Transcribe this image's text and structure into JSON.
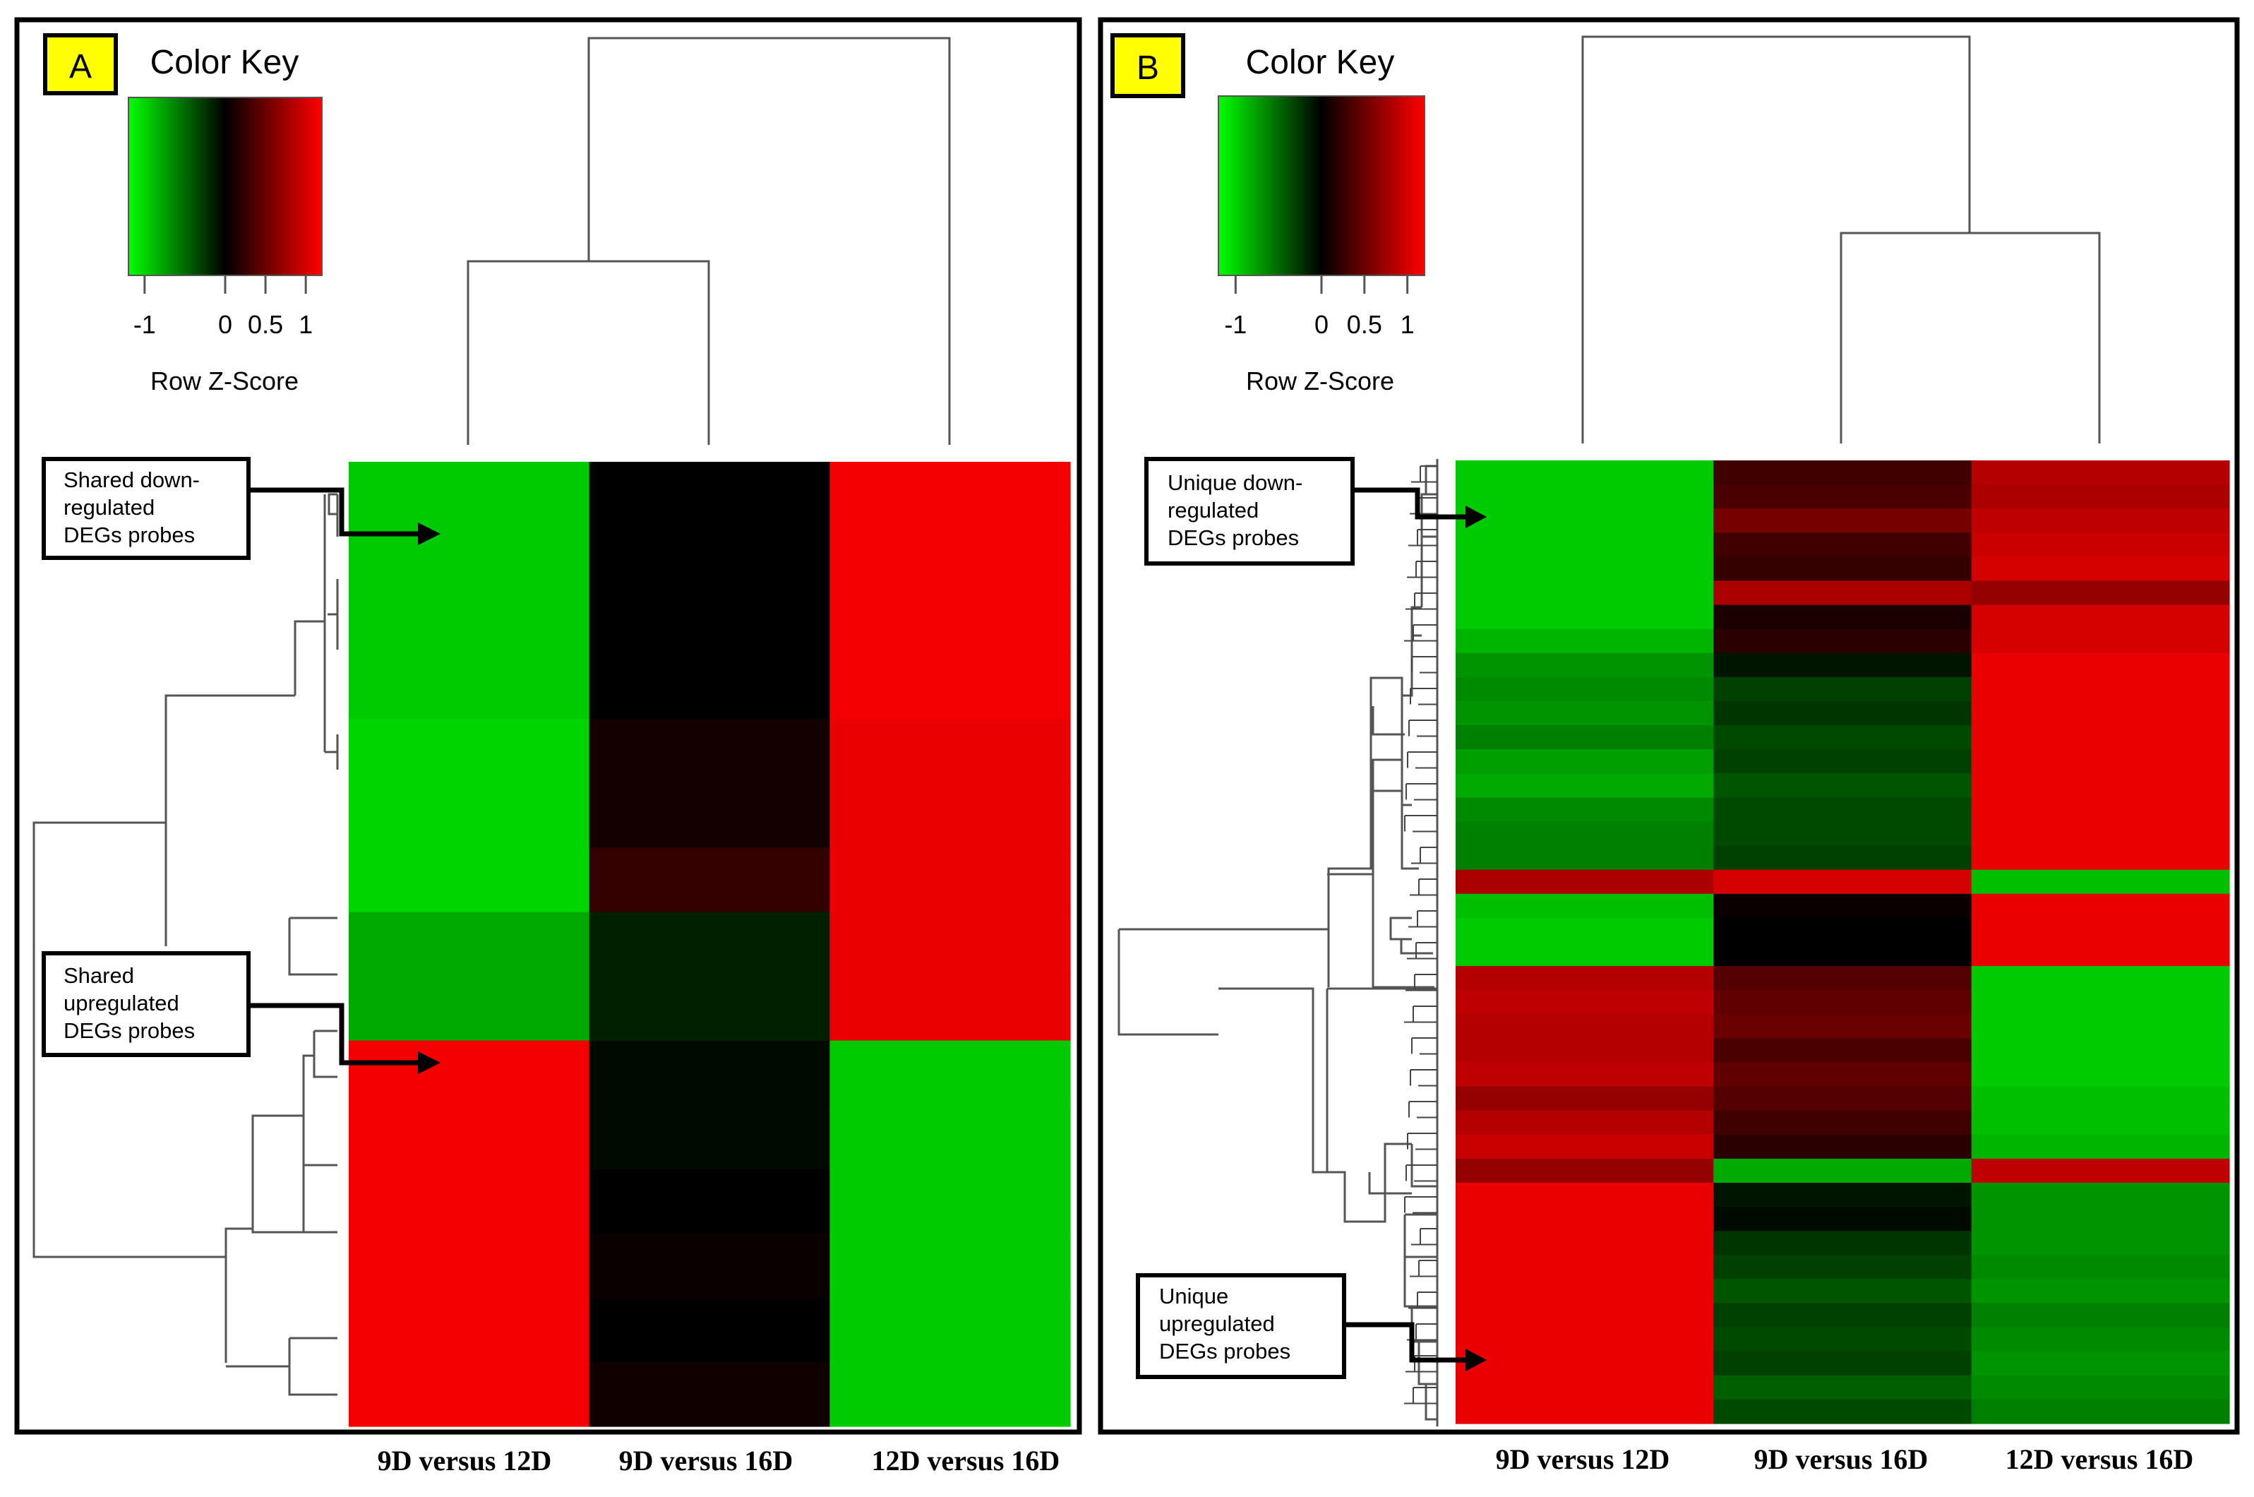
{
  "panels": [
    {
      "letter": "A",
      "color_key": {
        "title": "Color Key",
        "axis_label": "Row Z-Score",
        "ticks": [
          "-1",
          "0",
          "0.5",
          "1"
        ],
        "tick_values": [
          -1,
          0,
          0.5,
          1
        ],
        "range": [
          -1.2,
          1.2
        ]
      },
      "annotations": [
        {
          "text": [
            "Shared down-",
            "regulated",
            "DEGs probes"
          ],
          "target_row": 1
        },
        {
          "text": [
            "Shared",
            "upregulated",
            "DEGs probes"
          ],
          "target_row": 11
        }
      ]
    },
    {
      "letter": "B",
      "color_key": {
        "title": "Color Key",
        "axis_label": "Row Z-Score",
        "ticks": [
          "-1",
          "0",
          "0.5",
          "1"
        ],
        "tick_values": [
          -1,
          0,
          0.5,
          1
        ],
        "range": [
          -1.2,
          1.2
        ]
      },
      "annotations": [
        {
          "text": [
            "Unique down-",
            "regulated",
            "DEGs probes"
          ],
          "target_row": 1
        },
        {
          "text": [
            "Unique",
            "upregulated",
            "DEGs probes"
          ],
          "target_row": 38
        }
      ]
    }
  ],
  "colors": {
    "low": "#00ff00",
    "mid": "#000000",
    "high": "#ff0000",
    "highlight": "#ffff00"
  },
  "chart_data": [
    {
      "type": "heatmap",
      "title": "A",
      "columns": [
        "9D versus 12D",
        "9D versus 16D",
        "12D versus 16D"
      ],
      "value_range": [
        -1.2,
        1.2
      ],
      "values": [
        [
          -0.95,
          0.0,
          1.15
        ],
        [
          -0.95,
          0.0,
          1.15
        ],
        [
          -0.95,
          0.0,
          1.15
        ],
        [
          -0.95,
          0.0,
          1.15
        ],
        [
          -1.0,
          0.1,
          1.1
        ],
        [
          -1.0,
          0.1,
          1.1
        ],
        [
          -1.0,
          0.25,
          1.1
        ],
        [
          -0.8,
          -0.15,
          1.1
        ],
        [
          -0.8,
          -0.15,
          1.1
        ],
        [
          1.15,
          -0.05,
          -0.95
        ],
        [
          1.15,
          -0.05,
          -0.95
        ],
        [
          1.15,
          0.0,
          -0.95
        ],
        [
          1.15,
          0.05,
          -0.95
        ],
        [
          1.15,
          0.0,
          -0.95
        ],
        [
          1.15,
          0.08,
          -0.95
        ]
      ],
      "column_dendrogram": "((9D versus 12D, 9D versus 16D), 12D versus 16D)",
      "row_dendrogram": true
    },
    {
      "type": "heatmap",
      "title": "B",
      "columns": [
        "9D versus 12D",
        "9D versus 16D",
        "12D versus 16D"
      ],
      "value_range": [
        -1.2,
        1.2
      ],
      "values": [
        [
          -0.95,
          0.3,
          0.85
        ],
        [
          -0.95,
          0.35,
          0.8
        ],
        [
          -0.95,
          0.55,
          0.9
        ],
        [
          -0.95,
          0.3,
          0.95
        ],
        [
          -0.95,
          0.25,
          1.0
        ],
        [
          -0.95,
          0.8,
          0.7
        ],
        [
          -0.95,
          0.12,
          1.0
        ],
        [
          -0.85,
          0.2,
          1.0
        ],
        [
          -0.7,
          -0.1,
          1.1
        ],
        [
          -0.65,
          -0.3,
          1.1
        ],
        [
          -0.7,
          -0.25,
          1.1
        ],
        [
          -0.6,
          -0.35,
          1.1
        ],
        [
          -0.75,
          -0.3,
          1.1
        ],
        [
          -0.8,
          -0.4,
          1.1
        ],
        [
          -0.65,
          -0.35,
          1.1
        ],
        [
          -0.6,
          -0.35,
          1.1
        ],
        [
          -0.6,
          -0.3,
          1.1
        ],
        [
          0.8,
          1.0,
          -0.9
        ],
        [
          -0.9,
          0.05,
          1.1
        ],
        [
          -0.95,
          0.0,
          1.1
        ],
        [
          -0.95,
          0.0,
          1.1
        ],
        [
          0.85,
          0.4,
          -0.95
        ],
        [
          0.9,
          0.45,
          -0.95
        ],
        [
          0.85,
          0.5,
          -0.95
        ],
        [
          0.85,
          0.35,
          -0.95
        ],
        [
          0.9,
          0.45,
          -0.95
        ],
        [
          0.7,
          0.4,
          -0.9
        ],
        [
          0.85,
          0.3,
          -0.9
        ],
        [
          0.95,
          0.2,
          -0.85
        ],
        [
          0.7,
          -0.8,
          0.9
        ],
        [
          1.1,
          -0.1,
          -0.7
        ],
        [
          1.1,
          -0.05,
          -0.7
        ],
        [
          1.1,
          -0.25,
          -0.7
        ],
        [
          1.1,
          -0.3,
          -0.65
        ],
        [
          1.1,
          -0.4,
          -0.7
        ],
        [
          1.1,
          -0.3,
          -0.6
        ],
        [
          1.1,
          -0.35,
          -0.65
        ],
        [
          1.1,
          -0.3,
          -0.7
        ],
        [
          1.1,
          -0.45,
          -0.65
        ],
        [
          1.1,
          -0.35,
          -0.6
        ]
      ],
      "column_dendrogram": "(9D versus 12D, (9D versus 16D, 12D versus 16D))",
      "row_dendrogram": true
    }
  ]
}
